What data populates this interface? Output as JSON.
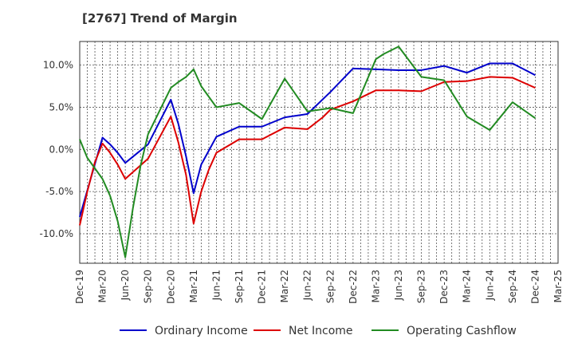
{
  "chart_data": {
    "type": "line",
    "title": "[2767]  Trend of Margin",
    "x": [
      "Dec-19",
      "Jan-20",
      "Feb-20",
      "Mar-20",
      "Apr-20",
      "May-20",
      "Jun-20",
      "Jul-20",
      "Aug-20",
      "Sep-20",
      "Oct-20",
      "Nov-20",
      "Dec-20",
      "Jan-21",
      "Feb-21",
      "Mar-21",
      "Apr-21",
      "May-21",
      "Jun-21",
      "Jul-21",
      "Aug-21",
      "Sep-21",
      "Oct-21",
      "Nov-21",
      "Dec-21",
      "Jan-22",
      "Feb-22",
      "Mar-22",
      "Apr-22",
      "May-22",
      "Jun-22",
      "Jul-22",
      "Aug-22",
      "Sep-22",
      "Oct-22",
      "Nov-22",
      "Dec-22",
      "Jan-23",
      "Feb-23",
      "Mar-23",
      "Apr-23",
      "May-23",
      "Jun-23",
      "Jul-23",
      "Aug-23",
      "Sep-23",
      "Oct-23",
      "Nov-23",
      "Dec-23",
      "Jan-24",
      "Feb-24",
      "Mar-24",
      "Apr-24",
      "May-24",
      "Jun-24",
      "Jul-24",
      "Aug-24",
      "Sep-24",
      "Oct-24",
      "Nov-24",
      "Dec-24",
      "Jan-25",
      "Feb-25",
      "Mar-25"
    ],
    "x_tick_labels": [
      "Dec-19",
      "Mar-20",
      "Jun-20",
      "Sep-20",
      "Dec-20",
      "Mar-21",
      "Jun-21",
      "Sep-21",
      "Dec-21",
      "Mar-22",
      "Jun-22",
      "Sep-22",
      "Dec-22",
      "Mar-23",
      "Jun-23",
      "Sep-23",
      "Dec-23",
      "Mar-24",
      "Jun-24",
      "Sep-24",
      "Dec-24",
      "Mar-25"
    ],
    "y_ticks": [
      10.0,
      5.0,
      0.0,
      -5.0,
      -10.0
    ],
    "y_tick_labels": [
      "10.0%",
      "5.0%",
      "0.0%",
      "-5.0%",
      "-10.0%"
    ],
    "ylim": [
      -13.5,
      12.8
    ],
    "grid": true,
    "legend_position": "bottom",
    "series": [
      {
        "name": "Ordinary Income",
        "color": "#0000cc",
        "points": [
          [
            "Dec-19",
            -8.0
          ],
          [
            "Mar-20",
            1.4
          ],
          [
            "Apr-20",
            0.6
          ],
          [
            "May-20",
            -0.4
          ],
          [
            "Jun-20",
            -1.6
          ],
          [
            "Sep-20",
            0.6
          ],
          [
            "Dec-20",
            5.9
          ],
          [
            "Jan-21",
            3.0
          ],
          [
            "Feb-21",
            -0.8
          ],
          [
            "Mar-21",
            -5.2
          ],
          [
            "Apr-21",
            -1.8
          ],
          [
            "Jun-21",
            1.5
          ],
          [
            "Sep-21",
            2.7
          ],
          [
            "Dec-21",
            2.7
          ],
          [
            "Mar-22",
            3.8
          ],
          [
            "Jun-22",
            4.2
          ],
          [
            "Sep-22",
            6.8
          ],
          [
            "Dec-22",
            9.6
          ],
          [
            "Mar-23",
            9.5
          ],
          [
            "Jun-23",
            9.4
          ],
          [
            "Sep-23",
            9.4
          ],
          [
            "Dec-23",
            9.9
          ],
          [
            "Mar-24",
            9.1
          ],
          [
            "Jun-24",
            10.2
          ],
          [
            "Sep-24",
            10.2
          ],
          [
            "Dec-24",
            8.8
          ]
        ]
      },
      {
        "name": "Net Income",
        "color": "#dd0000",
        "points": [
          [
            "Dec-19",
            -9.0
          ],
          [
            "Jan-20",
            -5.0
          ],
          [
            "Feb-20",
            -1.5
          ],
          [
            "Mar-20",
            0.7
          ],
          [
            "Apr-20",
            -0.4
          ],
          [
            "May-20",
            -1.8
          ],
          [
            "Jun-20",
            -3.5
          ],
          [
            "Sep-20",
            -1.1
          ],
          [
            "Dec-20",
            3.9
          ],
          [
            "Jan-21",
            0.8
          ],
          [
            "Feb-21",
            -3.0
          ],
          [
            "Mar-21",
            -8.8
          ],
          [
            "Apr-21",
            -5.0
          ],
          [
            "May-21",
            -2.4
          ],
          [
            "Jun-21",
            -0.4
          ],
          [
            "Sep-21",
            1.2
          ],
          [
            "Dec-21",
            1.2
          ],
          [
            "Mar-22",
            2.6
          ],
          [
            "Jun-22",
            2.4
          ],
          [
            "Aug-22",
            3.8
          ],
          [
            "Sep-22",
            4.7
          ],
          [
            "Dec-22",
            5.7
          ],
          [
            "Mar-23",
            7.0
          ],
          [
            "Jun-23",
            7.0
          ],
          [
            "Sep-23",
            6.9
          ],
          [
            "Dec-23",
            8.0
          ],
          [
            "Mar-24",
            8.1
          ],
          [
            "Jun-24",
            8.6
          ],
          [
            "Sep-24",
            8.5
          ],
          [
            "Dec-24",
            7.3
          ]
        ]
      },
      {
        "name": "Operating Cashflow",
        "color": "#228b22",
        "points": [
          [
            "Dec-19",
            1.2
          ],
          [
            "Jan-20",
            -1.0
          ],
          [
            "Mar-20",
            -3.5
          ],
          [
            "Apr-20",
            -5.5
          ],
          [
            "May-20",
            -8.5
          ],
          [
            "Jun-20",
            -12.8
          ],
          [
            "Jul-20",
            -7.0
          ],
          [
            "Aug-20",
            -2.0
          ],
          [
            "Sep-20",
            1.8
          ],
          [
            "Dec-20",
            7.3
          ],
          [
            "Jan-21",
            8.0
          ],
          [
            "Feb-21",
            8.6
          ],
          [
            "Mar-21",
            9.5
          ],
          [
            "Apr-21",
            7.5
          ],
          [
            "Jun-21",
            5.0
          ],
          [
            "Sep-21",
            5.5
          ],
          [
            "Dec-21",
            3.6
          ],
          [
            "Mar-22",
            8.4
          ],
          [
            "Jun-22",
            4.5
          ],
          [
            "Sep-22",
            4.9
          ],
          [
            "Dec-22",
            4.3
          ],
          [
            "Mar-23",
            10.7
          ],
          [
            "Apr-23",
            11.3
          ],
          [
            "Jun-23",
            12.2
          ],
          [
            "Sep-23",
            8.6
          ],
          [
            "Dec-23",
            8.2
          ],
          [
            "Mar-24",
            3.9
          ],
          [
            "Jun-24",
            2.3
          ],
          [
            "Sep-24",
            5.6
          ],
          [
            "Dec-24",
            3.7
          ]
        ]
      }
    ]
  }
}
